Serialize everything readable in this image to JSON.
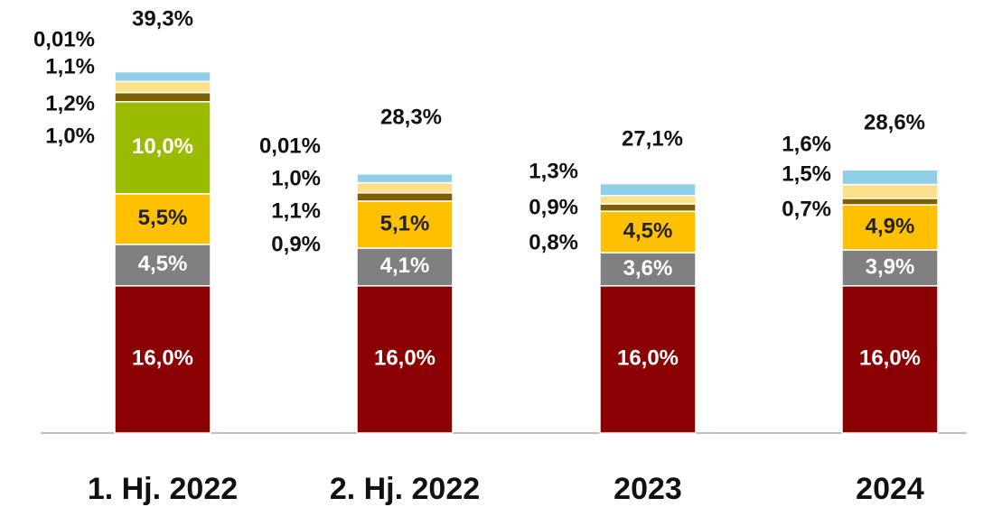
{
  "chart_data": {
    "type": "stacked_bar",
    "categories": [
      "1. Hj. 2022",
      "2. Hj. 2022",
      "2023",
      "2024"
    ],
    "series": [
      {
        "color": "#8b0000",
        "values": [
          16.0,
          16.0,
          16.0,
          16.0
        ],
        "value_labels": [
          "16,0%",
          "16,0%",
          "16,0%",
          "16,0%"
        ]
      },
      {
        "color": "#808080",
        "values": [
          4.5,
          4.1,
          3.6,
          3.9
        ],
        "value_labels": [
          "4,5%",
          "4,1%",
          "3,6%",
          "3,9%"
        ]
      },
      {
        "color": "#ffc000",
        "values": [
          5.5,
          5.1,
          4.5,
          4.9
        ],
        "value_labels": [
          "5,5%",
          "5,1%",
          "4,5%",
          "4,9%"
        ]
      },
      {
        "color": "#99bb00",
        "values": [
          10.0,
          null,
          null,
          null
        ],
        "value_labels": [
          "10,0%",
          null,
          null,
          null
        ]
      },
      {
        "color": "#7f6000",
        "values": [
          1.0,
          0.9,
          0.8,
          0.7
        ],
        "value_labels": [
          "1,0%",
          "0,9%",
          "0,8%",
          "0,7%"
        ]
      },
      {
        "color": "#ffe08a",
        "values": [
          1.2,
          1.1,
          0.9,
          1.5
        ],
        "value_labels": [
          "1,2%",
          "1,1%",
          "0,9%",
          "1,5%"
        ]
      },
      {
        "color": "#8fd0e8",
        "values": [
          1.1,
          1.0,
          1.3,
          1.6
        ],
        "value_labels": [
          "1,1%",
          "1,0%",
          "1,3%",
          "1,6%"
        ]
      },
      {
        "color": "#bfbfbf",
        "values": [
          0.01,
          0.01,
          null,
          null
        ],
        "value_labels": [
          "0,01%",
          "0,01%",
          null,
          null
        ]
      }
    ],
    "totals": [
      39.3,
      28.3,
      27.1,
      28.6
    ],
    "total_labels": [
      "39,3%",
      "28,3%",
      "27,1%",
      "28,6%"
    ]
  }
}
